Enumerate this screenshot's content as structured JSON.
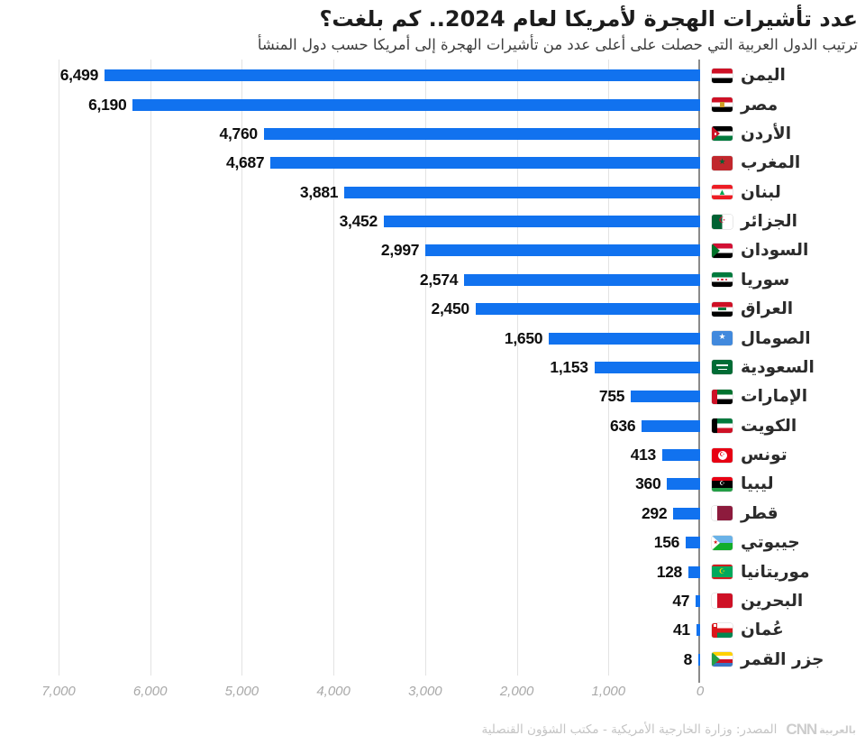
{
  "header": {
    "title": "عدد تأشيرات الهجرة لأمريكا لعام 2024.. كم بلغت؟",
    "subtitle": "ترتيب الدول العربية التي حصلت على أعلى عدد من تأشيرات الهجرة إلى أمريكا حسب دول المنشأ"
  },
  "chart_data": {
    "type": "bar",
    "orientation": "horizontal",
    "direction": "rtl",
    "bar_color": "#1172ef",
    "grid": true,
    "xlim": [
      0,
      7000
    ],
    "x_ticks": [
      "7,000",
      "6,000",
      "5,000",
      "4,000",
      "3,000",
      "2,000",
      "1,000",
      "0"
    ],
    "categories": [
      "اليمن",
      "مصر",
      "الأردن",
      "المغرب",
      "لبنان",
      "الجزائر",
      "السودان",
      "سوريا",
      "العراق",
      "الصومال",
      "السعودية",
      "الإمارات",
      "الكويت",
      "تونس",
      "ليبيا",
      "قطر",
      "جيبوتي",
      "موريتانيا",
      "البحرين",
      "عُمان",
      "جزر القمر"
    ],
    "values": [
      6499,
      6190,
      4760,
      4687,
      3881,
      3452,
      2997,
      2574,
      2450,
      1650,
      1153,
      755,
      636,
      413,
      360,
      292,
      156,
      128,
      47,
      41,
      8
    ],
    "value_labels": [
      "6,499",
      "6,190",
      "4,760",
      "4,687",
      "3,881",
      "3,452",
      "2,997",
      "2,574",
      "2,450",
      "1,650",
      "1,153",
      "755",
      "636",
      "413",
      "360",
      "292",
      "156",
      "128",
      "47",
      "41",
      "8"
    ],
    "flags": [
      "yemen",
      "egypt",
      "jordan",
      "morocco",
      "lebanon",
      "algeria",
      "sudan",
      "syria",
      "iraq",
      "somalia",
      "saudi-arabia",
      "uae",
      "kuwait",
      "tunisia",
      "libya",
      "qatar",
      "djibouti",
      "mauritania",
      "bahrain",
      "oman",
      "comoros"
    ]
  },
  "footer": {
    "source": "المصدر: وزارة الخارجية الأمريكية - مكتب الشؤون القنصلية",
    "logo_cnn": "CNN",
    "logo_ar": "بالعربية"
  }
}
